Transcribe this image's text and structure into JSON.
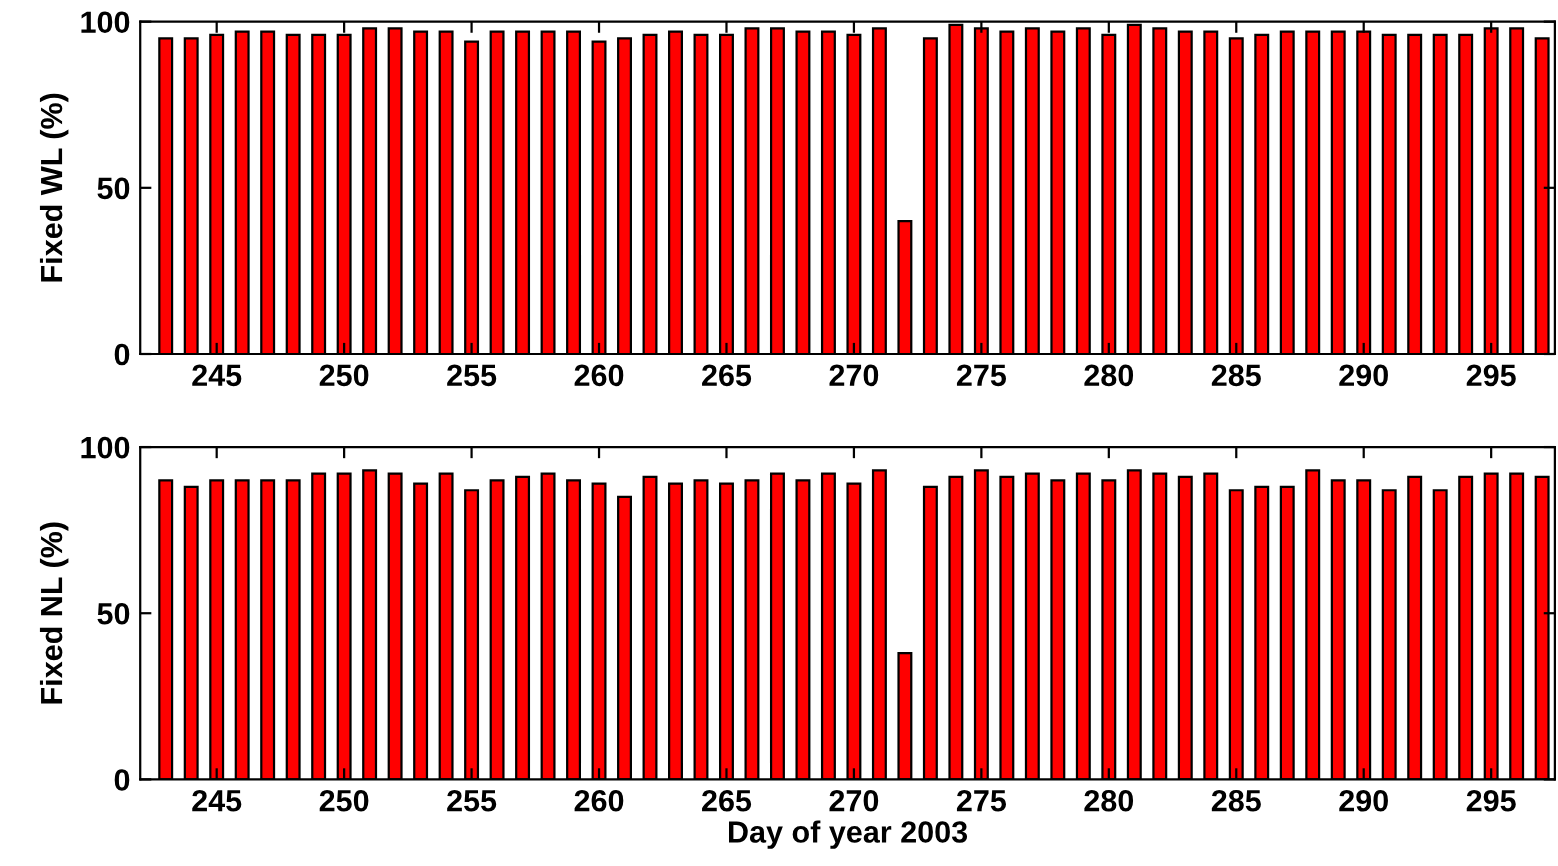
{
  "chart_data": [
    {
      "type": "bar",
      "ylabel": "Fixed WL (%)",
      "x": [
        243,
        244,
        245,
        246,
        247,
        248,
        249,
        250,
        251,
        252,
        253,
        254,
        255,
        256,
        257,
        258,
        259,
        260,
        261,
        262,
        263,
        264,
        265,
        266,
        267,
        268,
        269,
        270,
        271,
        272,
        273,
        274,
        275,
        276,
        277,
        278,
        279,
        280,
        281,
        282,
        283,
        284,
        285,
        286,
        287,
        288,
        289,
        290,
        291,
        292,
        293,
        294,
        295,
        296,
        297
      ],
      "values": [
        95,
        95,
        96,
        97,
        97,
        96,
        96,
        96,
        98,
        98,
        97,
        97,
        94,
        97,
        97,
        97,
        97,
        94,
        95,
        96,
        97,
        96,
        96,
        98,
        98,
        97,
        97,
        96,
        98,
        40,
        95,
        99,
        98,
        97,
        98,
        97,
        98,
        96,
        99,
        98,
        97,
        97,
        95,
        96,
        97,
        97,
        97,
        97,
        96,
        96,
        96,
        96,
        98,
        98,
        95
      ],
      "color": "#ff0000",
      "xlim": [
        242,
        297.5
      ],
      "ylim": [
        0,
        100
      ],
      "xticks": [
        245,
        250,
        255,
        260,
        265,
        270,
        275,
        280,
        285,
        290,
        295
      ],
      "yticks": [
        0,
        50,
        100
      ],
      "grid": false
    },
    {
      "type": "bar",
      "ylabel": "Fixed NL (%)",
      "xlabel": "Day of year 2003",
      "x": [
        243,
        244,
        245,
        246,
        247,
        248,
        249,
        250,
        251,
        252,
        253,
        254,
        255,
        256,
        257,
        258,
        259,
        260,
        261,
        262,
        263,
        264,
        265,
        266,
        267,
        268,
        269,
        270,
        271,
        272,
        273,
        274,
        275,
        276,
        277,
        278,
        279,
        280,
        281,
        282,
        283,
        284,
        285,
        286,
        287,
        288,
        289,
        290,
        291,
        292,
        293,
        294,
        295,
        296,
        297
      ],
      "values": [
        90,
        88,
        90,
        90,
        90,
        90,
        92,
        92,
        93,
        92,
        89,
        92,
        87,
        90,
        91,
        92,
        90,
        89,
        85,
        91,
        89,
        90,
        89,
        90,
        92,
        90,
        92,
        89,
        93,
        38,
        88,
        91,
        93,
        91,
        92,
        90,
        92,
        90,
        93,
        92,
        91,
        92,
        87,
        88,
        88,
        93,
        90,
        90,
        87,
        91,
        87,
        91,
        92,
        92,
        91
      ],
      "color": "#ff0000",
      "xlim": [
        242,
        297.5
      ],
      "ylim": [
        0,
        100
      ],
      "xticks": [
        245,
        250,
        255,
        260,
        265,
        270,
        275,
        280,
        285,
        290,
        295
      ],
      "yticks": [
        0,
        50,
        100
      ],
      "grid": false
    }
  ]
}
